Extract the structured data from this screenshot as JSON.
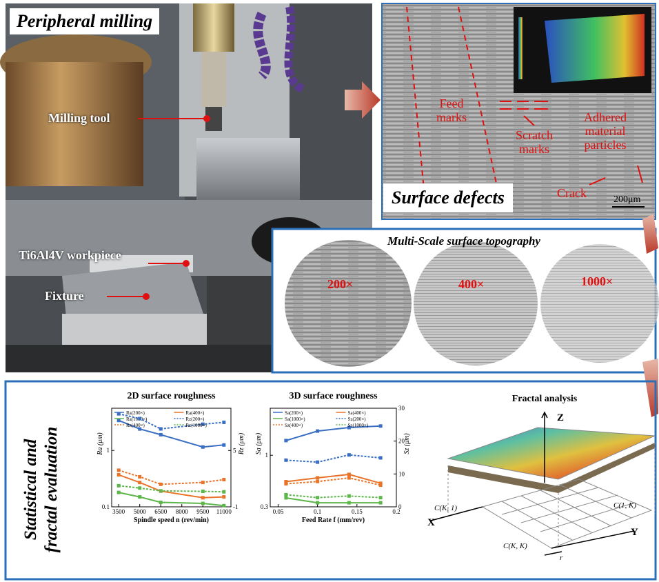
{
  "milling_panel": {
    "title": "Peripheral milling",
    "labels": [
      "Milling tool",
      "Ti6Al4V workpiece",
      "Fixture"
    ]
  },
  "defects_panel": {
    "title": "Surface defects",
    "annotations": [
      "Feed marks",
      "Scratch marks",
      "Adhered material particles",
      "Crack"
    ],
    "scale_bar": "200μm"
  },
  "topography_panel": {
    "title": "Multi-Scale surface topography",
    "magnifications": [
      "200×",
      "400×",
      "1000×"
    ]
  },
  "evaluation_panel": {
    "title": "Statistical and fractal evaluation",
    "roughness_2d": {
      "title": "2D surface roughness",
      "x_label": "Spindle speed n (rev/min)",
      "y_label": "Ra (μm)",
      "y2_label": "Rz (μm)",
      "log_y": true,
      "x": [
        3500,
        5000,
        6500,
        9500,
        11000
      ],
      "xlim": [
        3000,
        11500
      ],
      "xticks": [
        3500,
        5000,
        6500,
        8000,
        9500,
        11000
      ],
      "ylim": [
        0.1,
        5.6
      ],
      "yticks": [
        0.1,
        1
      ],
      "y2lim": [
        -1,
        9.5
      ],
      "y2ticks": [
        -1,
        5
      ],
      "series": [
        {
          "name": "Ra(200×)",
          "color": "#3a6fc4",
          "style": "solid",
          "values": [
            3.4,
            2.4,
            1.9,
            1.15,
            1.25
          ]
        },
        {
          "name": "Ra(400×)",
          "color": "#e8742a",
          "style": "solid",
          "values": [
            0.37,
            0.27,
            0.19,
            0.145,
            0.15
          ]
        },
        {
          "name": "Ra(1000×)",
          "color": "#5cb64a",
          "style": "solid",
          "values": [
            0.18,
            0.15,
            0.12,
            0.115,
            0.105
          ]
        },
        {
          "name": "Rz(200×)",
          "color": "#3a6fc4",
          "style": "dotted",
          "axis": "y2",
          "values": [
            8.9,
            8.4,
            7.3,
            7.8,
            8.0
          ]
        },
        {
          "name": "Rz(400×)",
          "color": "#e8742a",
          "style": "dotted",
          "axis": "y2",
          "values": [
            2.9,
            2.2,
            1.4,
            1.6,
            1.9
          ]
        },
        {
          "name": "Rz(1000×)",
          "color": "#5cb64a",
          "style": "dotted",
          "axis": "y2",
          "values": [
            1.25,
            1.0,
            0.7,
            0.65,
            0.6
          ]
        }
      ]
    },
    "roughness_3d": {
      "title": "3D surface roughness",
      "x_label": "Feed Rate f (mm/rev)",
      "y_label": "Sa (μm)",
      "y2_label": "Sz (μm)",
      "log_y": true,
      "x": [
        0.06,
        0.1,
        0.14,
        0.18
      ],
      "xlim": [
        0.04,
        0.2
      ],
      "xticks": [
        0.05,
        0.1,
        0.15,
        0.2
      ],
      "ylim": [
        0.3,
        3
      ],
      "yticks": [
        0.3,
        1
      ],
      "y2lim": [
        0,
        30
      ],
      "y2ticks": [
        0,
        10,
        20,
        30
      ],
      "series": [
        {
          "name": "Sa(200×)",
          "color": "#3a6fc4",
          "style": "solid",
          "values": [
            1.41,
            1.76,
            1.91,
            1.98
          ]
        },
        {
          "name": "Sa(400×)",
          "color": "#e8742a",
          "style": "solid",
          "values": [
            0.54,
            0.59,
            0.64,
            0.52
          ]
        },
        {
          "name": "Sa(1000×)",
          "color": "#5cb64a",
          "style": "solid",
          "values": [
            0.37,
            0.33,
            0.33,
            0.33
          ]
        },
        {
          "name": "Sz(200×)",
          "color": "#3a6fc4",
          "style": "dotted",
          "axis": "y2",
          "values": [
            14.2,
            13.6,
            15.8,
            14.9
          ]
        },
        {
          "name": "Sz(400×)",
          "color": "#e8742a",
          "style": "dotted",
          "axis": "y2",
          "values": [
            7.0,
            7.7,
            8.8,
            6.6
          ]
        },
        {
          "name": "Sz(1000×)",
          "color": "#5cb64a",
          "style": "dotted",
          "axis": "y2",
          "values": [
            3.7,
            2.8,
            3.3,
            2.8
          ]
        }
      ]
    },
    "fractal": {
      "title": "Fractal analysis",
      "axis_labels": [
        "Z",
        "X",
        "Y"
      ],
      "corner_labels": [
        "C(K, 1)",
        "C(1, K)",
        "C(K, K)",
        "r"
      ]
    }
  }
}
